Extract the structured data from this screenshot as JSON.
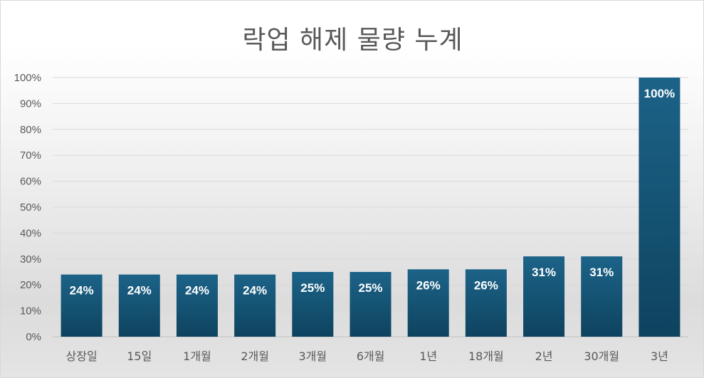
{
  "chart_data": {
    "type": "bar",
    "title": "락업 해제 물량 누계",
    "xlabel": "",
    "ylabel": "",
    "categories": [
      "상장일",
      "15일",
      "1개월",
      "2개월",
      "3개월",
      "6개월",
      "1년",
      "18개월",
      "2년",
      "30개월",
      "3년"
    ],
    "values": [
      24,
      24,
      24,
      24,
      25,
      25,
      26,
      26,
      31,
      31,
      100
    ],
    "data_labels": [
      "24%",
      "24%",
      "24%",
      "24%",
      "25%",
      "25%",
      "26%",
      "26%",
      "31%",
      "31%",
      "100%"
    ],
    "ylim": [
      0,
      100
    ],
    "yticks": [
      "0%",
      "10%",
      "20%",
      "30%",
      "40%",
      "50%",
      "60%",
      "70%",
      "80%",
      "90%",
      "100%"
    ],
    "grid": true,
    "legend": "none",
    "colors": {
      "bar_top": "#1a5f85",
      "bar_bottom": "#0f4561",
      "gridline": "#d9d9d9",
      "text": "#595959"
    }
  }
}
